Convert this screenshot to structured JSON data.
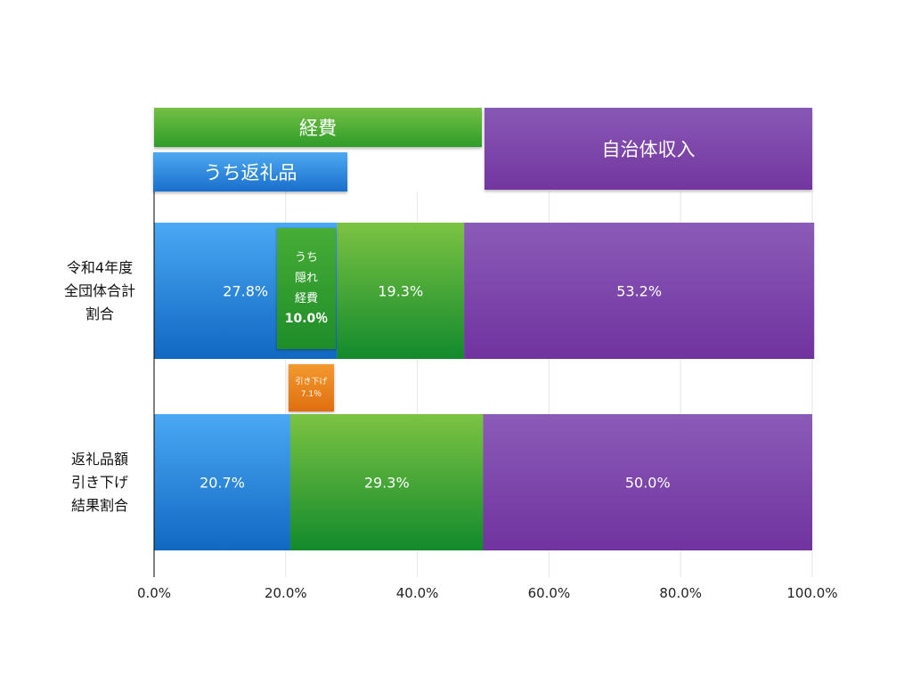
{
  "chart_data": {
    "type": "bar",
    "orientation": "horizontal",
    "stacked": true,
    "categories": [
      "令和4年度\n全団体合計\n割合",
      "返礼品額\n引き下げ\n結果割合"
    ],
    "series": [
      {
        "name": "うち返礼品",
        "values": [
          27.8,
          20.7
        ],
        "labels": [
          "27.8%",
          "20.7%"
        ],
        "color": "#2f86df"
      },
      {
        "name": "経費",
        "values": [
          19.3,
          29.3
        ],
        "labels": [
          "19.3%",
          "29.3%"
        ],
        "color": "#3ea432"
      },
      {
        "name": "自治体収入",
        "values": [
          53.2,
          50.0
        ],
        "labels": [
          "53.2%",
          "50.0%"
        ],
        "color": "#7d45aa"
      }
    ],
    "xlim": [
      0,
      100
    ],
    "x_ticks": [
      0,
      20,
      40,
      60,
      80,
      100
    ],
    "x_tick_labels": [
      "0.0%",
      "20.0%",
      "40.0%",
      "60.0%",
      "80.0%",
      "100.0%"
    ],
    "grid": true,
    "legend_boxes": {
      "expense": "経費",
      "gift": "うち返礼品",
      "revenue": "自治体収入"
    },
    "annotations": {
      "hidden_expense": {
        "lines": [
          "うち",
          "隠れ",
          "経費"
        ],
        "value_label": "10.0％",
        "value": 10.0
      },
      "reduction": {
        "line1": "引き下げ",
        "line2": "7.1％",
        "value": 7.1
      }
    }
  }
}
